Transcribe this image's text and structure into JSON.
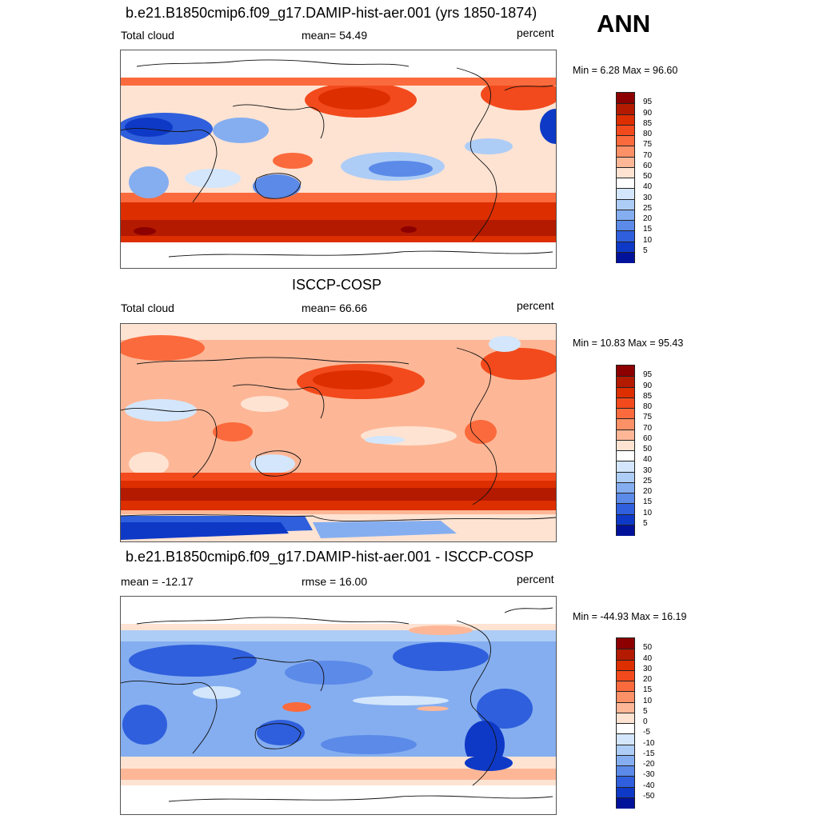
{
  "season": "ANN",
  "panels": [
    {
      "title": "b.e21.B1850cmip6.f09_g17.DAMIP-hist-aer.001 (yrs 1850-1874)",
      "left_label": "Total cloud",
      "center_label": "mean=  54.49",
      "right_label": "percent",
      "minmax": "Min =   6.28 Max =  96.60",
      "colorbar": {
        "labels": [
          "95",
          "90",
          "85",
          "80",
          "75",
          "70",
          "60",
          "50",
          "40",
          "30",
          "25",
          "20",
          "15",
          "10",
          "5"
        ],
        "colors": [
          "#8c0000",
          "#b31a00",
          "#dd2e00",
          "#f24a1c",
          "#fb6a3c",
          "#fc9066",
          "#fdb797",
          "#fee3d2",
          "#ffffff",
          "#d3e6fb",
          "#aecdf6",
          "#85aef0",
          "#5b8ae8",
          "#2f5fdc",
          "#0e39c7",
          "#00129a"
        ]
      }
    },
    {
      "title": "ISCCP-COSP",
      "left_label": "Total cloud",
      "center_label": "mean=  66.66",
      "right_label": "percent",
      "minmax": "Min =  10.83 Max =  95.43",
      "colorbar": {
        "labels": [
          "95",
          "90",
          "85",
          "80",
          "75",
          "70",
          "60",
          "50",
          "40",
          "30",
          "25",
          "20",
          "15",
          "10",
          "5"
        ],
        "colors": [
          "#8c0000",
          "#b31a00",
          "#dd2e00",
          "#f24a1c",
          "#fb6a3c",
          "#fc9066",
          "#fdb797",
          "#fee3d2",
          "#ffffff",
          "#d3e6fb",
          "#aecdf6",
          "#85aef0",
          "#5b8ae8",
          "#2f5fdc",
          "#0e39c7",
          "#00129a"
        ]
      }
    },
    {
      "title": "b.e21.B1850cmip6.f09_g17.DAMIP-hist-aer.001 - ISCCP-COSP",
      "left_label": "mean = -12.17",
      "center_label": "rmse =  16.00",
      "right_label": "percent",
      "minmax": "Min = -44.93 Max =  16.19",
      "colorbar": {
        "labels": [
          "50",
          "40",
          "30",
          "20",
          "15",
          "10",
          "5",
          "0",
          "-5",
          "-10",
          "-15",
          "-20",
          "-30",
          "-40",
          "-50"
        ],
        "colors": [
          "#8c0000",
          "#b31a00",
          "#dd2e00",
          "#f24a1c",
          "#fb6a3c",
          "#fc9066",
          "#fdb797",
          "#fee3d2",
          "#ffffff",
          "#d3e6fb",
          "#aecdf6",
          "#85aef0",
          "#5b8ae8",
          "#2f5fdc",
          "#0e39c7",
          "#00129a"
        ]
      }
    }
  ]
}
